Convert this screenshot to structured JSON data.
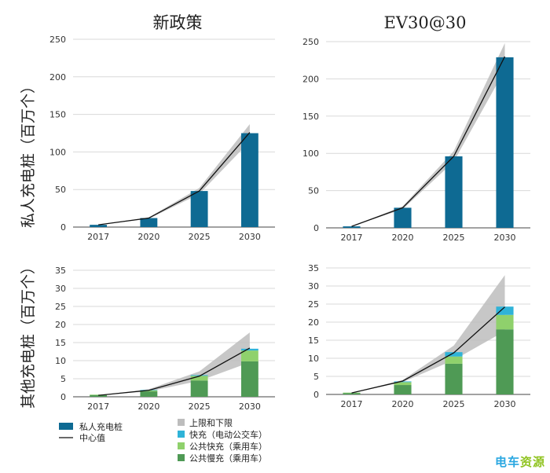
{
  "columns": {
    "left_title": "新政策",
    "right_title": "EV30@30"
  },
  "row_labels": {
    "top": "私人充电桩（百万个）",
    "bottom": "其他充电桩（百万个）"
  },
  "legend": {
    "left": [
      {
        "key": "private",
        "label": "私人充电桩",
        "swatch": "bar",
        "color": "#0e6a93"
      },
      {
        "key": "center",
        "label": "中心值",
        "swatch": "line",
        "color": "#111111"
      }
    ],
    "right": [
      {
        "key": "range",
        "label": "上限和下限",
        "color": "#bdbdbd"
      },
      {
        "key": "fast_bus",
        "label": "快充（电动公交车）",
        "color": "#2fb3d8"
      },
      {
        "key": "pub_fast",
        "label": "公共快充（乘用车）",
        "color": "#8fd16c"
      },
      {
        "key": "pub_slow",
        "label": "公共慢充（乘用车）",
        "color": "#4f9a55"
      }
    ]
  },
  "watermark": {
    "part1": "电车",
    "part2": "资源"
  },
  "chart_data": [
    {
      "type": "bar",
      "panel": "top-left",
      "categories": [
        "2017",
        "2020",
        "2025",
        "2030"
      ],
      "ylim": [
        0,
        250
      ],
      "yticks": [
        0,
        50,
        100,
        150,
        200,
        250
      ],
      "series": [
        {
          "key": "private",
          "values": [
            3,
            12,
            48,
            125
          ]
        }
      ],
      "center_line": [
        3,
        12,
        48,
        126
      ],
      "band_low": [
        3,
        11,
        44,
        114
      ],
      "band_high": [
        3,
        13,
        52,
        137
      ]
    },
    {
      "type": "bar",
      "panel": "top-right",
      "categories": [
        "2017",
        "2020",
        "2025",
        "2030"
      ],
      "ylim": [
        0,
        250
      ],
      "yticks": [
        0,
        50,
        100,
        150,
        200,
        250
      ],
      "series": [
        {
          "key": "private",
          "values": [
            2,
            27,
            96,
            229
          ]
        }
      ],
      "center_line": [
        2,
        27,
        96,
        230
      ],
      "band_low": [
        2,
        25,
        89,
        212
      ],
      "band_high": [
        2,
        29,
        103,
        248
      ]
    },
    {
      "type": "bar",
      "panel": "bottom-left",
      "stacked": true,
      "categories": [
        "2017",
        "2020",
        "2025",
        "2030"
      ],
      "ylim": [
        0,
        35
      ],
      "yticks": [
        0,
        5,
        10,
        15,
        20,
        25,
        30,
        35
      ],
      "series": [
        {
          "key": "pub_slow",
          "values": [
            0.5,
            1.5,
            4.5,
            9.8
          ]
        },
        {
          "key": "pub_fast",
          "values": [
            0.1,
            0.3,
            1.3,
            3.0
          ]
        },
        {
          "key": "fast_bus",
          "values": [
            0.0,
            0.1,
            0.2,
            0.5
          ]
        }
      ],
      "center_line": [
        0.4,
        1.8,
        5.7,
        13.5
      ],
      "band_low": [
        0.4,
        1.5,
        4.4,
        9.5
      ],
      "band_high": [
        0.4,
        2.1,
        7.0,
        17.8
      ]
    },
    {
      "type": "bar",
      "panel": "bottom-right",
      "stacked": true,
      "categories": [
        "2017",
        "2020",
        "2025",
        "2030"
      ],
      "ylim": [
        0,
        35
      ],
      "yticks": [
        0,
        5,
        10,
        15,
        20,
        25,
        30,
        35
      ],
      "series": [
        {
          "key": "pub_slow",
          "values": [
            0.4,
            2.6,
            8.5,
            18.0
          ]
        },
        {
          "key": "pub_fast",
          "values": [
            0.1,
            0.8,
            2.0,
            4.0
          ]
        },
        {
          "key": "fast_bus",
          "values": [
            0.0,
            0.2,
            1.2,
            2.3
          ]
        }
      ],
      "center_line": [
        0.4,
        3.7,
        11.5,
        24.2
      ],
      "band_low": [
        0.4,
        3.4,
        9.5,
        17.5
      ],
      "band_high": [
        0.4,
        4.0,
        13.5,
        33.0
      ]
    }
  ]
}
